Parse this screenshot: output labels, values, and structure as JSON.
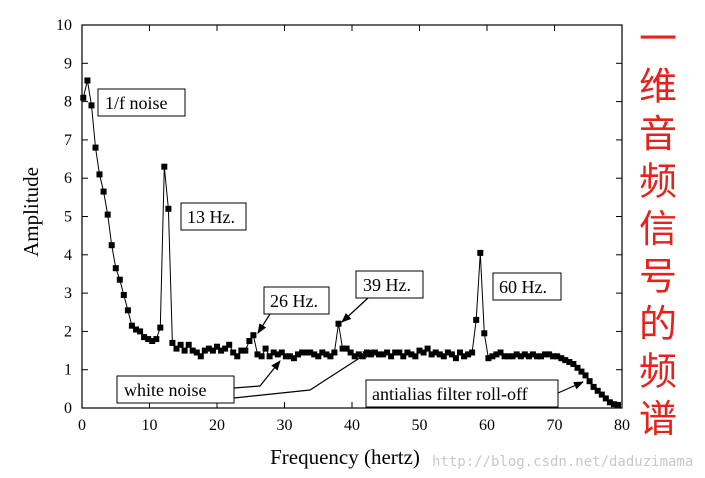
{
  "chart_data": {
    "type": "line",
    "xlabel": "Frequency (hertz)",
    "ylabel": "Amplitude",
    "xlim": [
      0,
      80
    ],
    "ylim": [
      0,
      10
    ],
    "x_ticks": [
      0,
      10,
      20,
      30,
      40,
      50,
      60,
      70,
      80
    ],
    "y_ticks": [
      0,
      1,
      2,
      3,
      4,
      5,
      6,
      7,
      8,
      9,
      10
    ],
    "grid": false,
    "marker": "square",
    "series": [
      {
        "x": [
          0.2,
          0.8,
          1.4,
          2.0,
          2.6,
          3.2,
          3.8,
          4.4,
          5.0,
          5.6,
          6.2,
          6.8,
          7.4,
          8.0,
          8.6,
          9.2,
          9.8,
          10.4,
          11.0,
          11.6,
          12.2,
          12.8,
          13.4,
          14.0,
          14.6,
          15.2,
          15.8,
          16.4,
          17.0,
          17.6,
          18.2,
          18.8,
          19.4,
          20.0,
          20.6,
          21.2,
          21.8,
          22.4,
          23.0,
          23.6,
          24.2,
          24.8,
          25.4,
          26.0,
          26.6,
          27.2,
          27.8,
          28.4,
          29.0,
          29.6,
          30.2,
          30.8,
          31.4,
          32.0,
          32.6,
          33.2,
          33.8,
          34.4,
          35.0,
          35.6,
          36.2,
          36.8,
          37.4,
          38.0,
          38.6,
          39.2,
          39.8,
          40.4,
          41.0,
          41.6,
          42.2,
          42.8,
          43.4,
          44.0,
          44.6,
          45.2,
          45.8,
          46.4,
          47.0,
          47.6,
          48.2,
          48.8,
          49.4,
          50.0,
          50.6,
          51.2,
          51.8,
          52.4,
          53.0,
          53.6,
          54.2,
          54.8,
          55.4,
          56.0,
          56.6,
          57.2,
          57.8,
          58.4,
          59.0,
          59.6,
          60.2,
          60.8,
          61.4,
          62.0,
          62.6,
          63.2,
          63.8,
          64.4,
          65.0,
          65.6,
          66.2,
          66.8,
          67.4,
          68.0,
          68.6,
          69.2,
          69.8,
          70.4,
          71.0,
          71.6,
          72.2,
          72.8,
          73.4,
          74.0,
          74.6,
          75.2,
          75.8,
          76.4,
          77.0,
          77.6,
          78.2,
          78.8,
          79.4
        ],
        "values": [
          8.1,
          8.55,
          7.9,
          6.8,
          6.1,
          5.65,
          5.05,
          4.25,
          3.65,
          3.35,
          2.95,
          2.55,
          2.15,
          2.05,
          2.0,
          1.85,
          1.8,
          1.75,
          1.8,
          2.1,
          6.3,
          5.2,
          1.7,
          1.55,
          1.65,
          1.5,
          1.65,
          1.5,
          1.45,
          1.35,
          1.5,
          1.55,
          1.5,
          1.6,
          1.5,
          1.55,
          1.65,
          1.45,
          1.35,
          1.5,
          1.5,
          1.75,
          1.9,
          1.4,
          1.35,
          1.55,
          1.35,
          1.45,
          1.4,
          1.45,
          1.35,
          1.35,
          1.3,
          1.4,
          1.45,
          1.45,
          1.45,
          1.4,
          1.35,
          1.45,
          1.4,
          1.35,
          1.45,
          2.2,
          1.55,
          1.55,
          1.45,
          1.35,
          1.4,
          1.35,
          1.45,
          1.4,
          1.45,
          1.4,
          1.4,
          1.45,
          1.35,
          1.45,
          1.45,
          1.35,
          1.45,
          1.4,
          1.35,
          1.5,
          1.45,
          1.55,
          1.4,
          1.45,
          1.4,
          1.35,
          1.45,
          1.4,
          1.3,
          1.45,
          1.35,
          1.4,
          1.45,
          2.3,
          4.05,
          1.95,
          1.3,
          1.35,
          1.4,
          1.45,
          1.35,
          1.35,
          1.35,
          1.4,
          1.35,
          1.4,
          1.35,
          1.4,
          1.35,
          1.35,
          1.4,
          1.4,
          1.35,
          1.35,
          1.3,
          1.25,
          1.2,
          1.15,
          1.05,
          0.95,
          0.85,
          0.7,
          0.55,
          0.45,
          0.35,
          0.25,
          0.15,
          0.1,
          0.08
        ]
      }
    ],
    "annotations": [
      {
        "label": "1/f noise"
      },
      {
        "label": "13 Hz."
      },
      {
        "label": "26 Hz."
      },
      {
        "label": "39 Hz."
      },
      {
        "label": "60 Hz."
      },
      {
        "label": "white noise"
      },
      {
        "label": "antialias filter roll-off"
      }
    ]
  },
  "side_caption": [
    "一",
    "维",
    "音",
    "频",
    "信",
    "号",
    "的",
    "频",
    "谱"
  ],
  "watermark": "http://blog.csdn.net/daduzimama",
  "colors": {
    "line": "#000000",
    "caption": "#e8221b",
    "watermark": "#c8c8c8"
  }
}
